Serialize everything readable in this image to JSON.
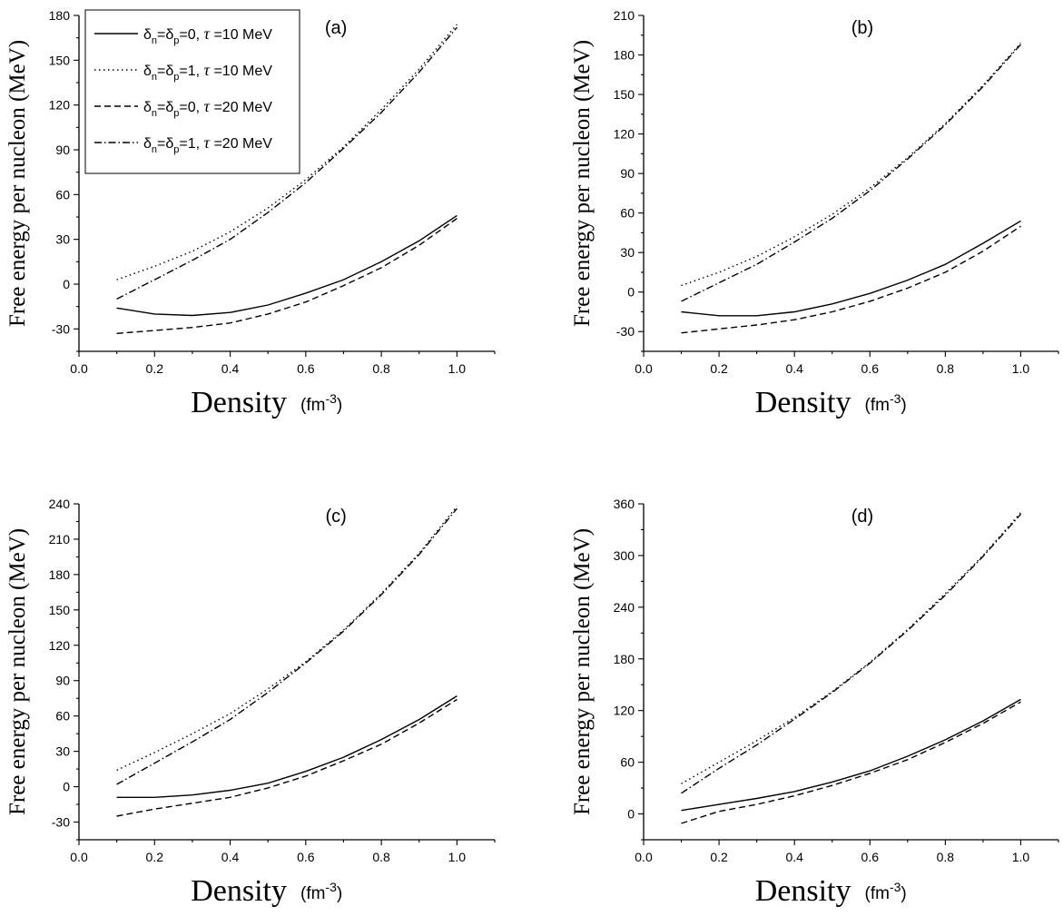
{
  "chart_data": [
    {
      "type": "line",
      "panel_label": "(a)",
      "xlabel": "Density",
      "xlabel_unit": "(fm-3)",
      "ylabel": "Free energy per nucleon (MeV)",
      "xlim": [
        0.0,
        1.1
      ],
      "ylim": [
        -45,
        180
      ],
      "xticks": [
        0.0,
        0.2,
        0.4,
        0.6,
        0.8,
        1.0
      ],
      "yticks": [
        -30,
        0,
        30,
        60,
        90,
        120,
        150,
        180
      ],
      "x": [
        0.1,
        0.2,
        0.3,
        0.4,
        0.5,
        0.6,
        0.7,
        0.8,
        0.9,
        1.0
      ],
      "legend": {
        "placement": "top-left",
        "entries": [
          {
            "symbol": "δ",
            "sub1": "n",
            "mid": "=δ",
            "sub2": "p",
            "rest": "=0, ",
            "tau": "τ",
            "tail": " =10 MeV"
          },
          {
            "symbol": "δ",
            "sub1": "n",
            "mid": "=δ",
            "sub2": "p",
            "rest": "=1, ",
            "tau": "τ",
            "tail": " =10 MeV"
          },
          {
            "symbol": "δ",
            "sub1": "n",
            "mid": "=δ",
            "sub2": "p",
            "rest": "=0, ",
            "tau": "τ",
            "tail": " =20 MeV"
          },
          {
            "symbol": "δ",
            "sub1": "n",
            "mid": "=δ",
            "sub2": "p",
            "rest": "=1, ",
            "tau": "τ",
            "tail": " =20 MeV"
          }
        ]
      },
      "series": [
        {
          "style": "solid",
          "values": [
            -16,
            -20,
            -21,
            -19,
            -14,
            -6,
            3,
            15,
            29,
            46
          ]
        },
        {
          "style": "dotted",
          "values": [
            3,
            12,
            22,
            35,
            51,
            70,
            92,
            117,
            144,
            174
          ]
        },
        {
          "style": "dashed",
          "values": [
            -33,
            -31,
            -29,
            -26,
            -20,
            -12,
            -1,
            11,
            26,
            44
          ]
        },
        {
          "style": "dashdot",
          "values": [
            -10,
            3,
            16,
            30,
            48,
            68,
            91,
            115,
            142,
            172
          ]
        }
      ]
    },
    {
      "type": "line",
      "panel_label": "(b)",
      "xlabel": "Density",
      "xlabel_unit": "(fm-3)",
      "ylabel": "Free energy per nucleon (MeV)",
      "xlim": [
        0.0,
        1.1
      ],
      "ylim": [
        -45,
        210
      ],
      "xticks": [
        0.0,
        0.2,
        0.4,
        0.6,
        0.8,
        1.0
      ],
      "yticks": [
        -30,
        0,
        30,
        60,
        90,
        120,
        150,
        180,
        210
      ],
      "x": [
        0.1,
        0.2,
        0.3,
        0.4,
        0.5,
        0.6,
        0.7,
        0.8,
        0.9,
        1.0
      ],
      "series": [
        {
          "style": "solid",
          "values": [
            -15,
            -18,
            -18,
            -15,
            -9,
            -1,
            9,
            21,
            37,
            54
          ]
        },
        {
          "style": "dotted",
          "values": [
            5,
            15,
            27,
            42,
            59,
            79,
            102,
            128,
            157,
            189
          ]
        },
        {
          "style": "dashed",
          "values": [
            -31,
            -28,
            -25,
            -21,
            -15,
            -7,
            3,
            15,
            31,
            50
          ]
        },
        {
          "style": "dashdot",
          "values": [
            -7,
            7,
            21,
            38,
            56,
            77,
            101,
            127,
            156,
            188
          ]
        }
      ]
    },
    {
      "type": "line",
      "panel_label": "(c)",
      "xlabel": "Density",
      "xlabel_unit": "(fm-3)",
      "ylabel": "Free energy per nucleon (MeV)",
      "xlim": [
        0.0,
        1.1
      ],
      "ylim": [
        -45,
        240
      ],
      "xticks": [
        0.0,
        0.2,
        0.4,
        0.6,
        0.8,
        1.0
      ],
      "yticks": [
        -30,
        0,
        30,
        60,
        90,
        120,
        150,
        180,
        210,
        240
      ],
      "x": [
        0.1,
        0.2,
        0.3,
        0.4,
        0.5,
        0.6,
        0.7,
        0.8,
        0.9,
        1.0
      ],
      "series": [
        {
          "style": "solid",
          "values": [
            -9,
            -9,
            -7,
            -3,
            3,
            13,
            25,
            40,
            57,
            77
          ]
        },
        {
          "style": "dotted",
          "values": [
            14,
            29,
            45,
            62,
            83,
            106,
            133,
            164,
            198,
            238
          ]
        },
        {
          "style": "dashed",
          "values": [
            -25,
            -19,
            -14,
            -9,
            -1,
            9,
            22,
            36,
            54,
            74
          ]
        },
        {
          "style": "dashdot",
          "values": [
            2,
            20,
            38,
            57,
            80,
            105,
            132,
            163,
            197,
            236
          ]
        }
      ]
    },
    {
      "type": "line",
      "panel_label": "(d)",
      "xlabel": "Density",
      "xlabel_unit": "(fm-3)",
      "ylabel": "Free energy per nucleon (MeV)",
      "xlim": [
        0.0,
        1.1
      ],
      "ylim": [
        -30,
        360
      ],
      "xticks": [
        0.0,
        0.2,
        0.4,
        0.6,
        0.8,
        1.0
      ],
      "yticks": [
        0,
        60,
        120,
        180,
        240,
        300,
        360
      ],
      "x": [
        0.1,
        0.2,
        0.3,
        0.4,
        0.5,
        0.6,
        0.7,
        0.8,
        0.9,
        1.0
      ],
      "series": [
        {
          "style": "solid",
          "values": [
            4,
            11,
            18,
            26,
            37,
            50,
            67,
            86,
            108,
            133
          ]
        },
        {
          "style": "dotted",
          "values": [
            35,
            60,
            85,
            112,
            142,
            176,
            214,
            256,
            300,
            350
          ]
        },
        {
          "style": "dashed",
          "values": [
            -11,
            3,
            11,
            21,
            33,
            47,
            63,
            83,
            105,
            130
          ]
        },
        {
          "style": "dashdot",
          "values": [
            24,
            53,
            80,
            110,
            141,
            175,
            213,
            254,
            299,
            348
          ]
        }
      ]
    }
  ]
}
